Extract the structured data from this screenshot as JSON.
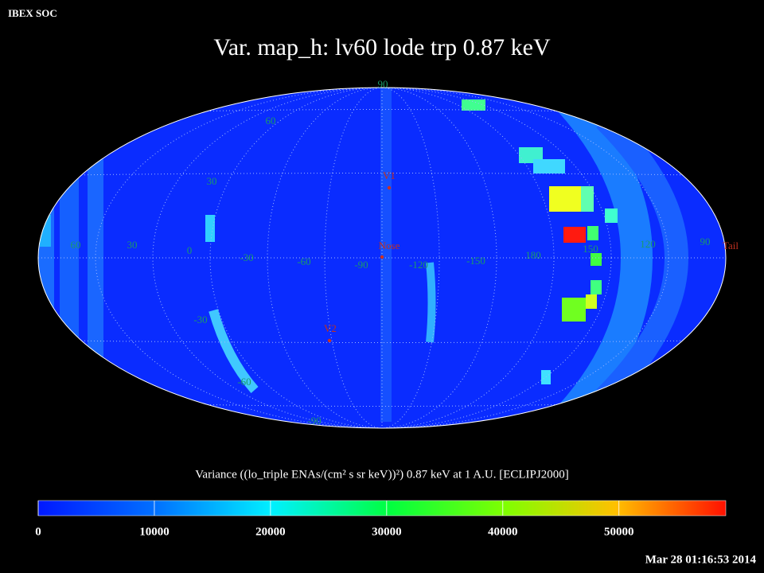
{
  "header": {
    "org": "IBEX SOC",
    "title": "Var. map_h: lv60 lode trp 0.87 keV"
  },
  "map": {
    "longitude_labels": [
      "60",
      "30",
      "0",
      "-30",
      "-60",
      "-90",
      "-120",
      "-150",
      "180",
      "150",
      "120",
      "90"
    ],
    "latitude_labels": [
      "90",
      "60",
      "30",
      "-30",
      "-60",
      "-90"
    ],
    "markers": [
      "V1",
      "Nose",
      "V2",
      "Tail"
    ]
  },
  "colorbar": {
    "caption": "Variance ((lo_triple ENAs/(cm² s sr keV))²) 0.87 keV at 1 A.U. [ECLIPJ2000]",
    "lim": [
      0,
      59200
    ],
    "ticks": [
      0,
      10000,
      20000,
      30000,
      40000,
      50000
    ]
  },
  "footer": {
    "timestamp": "Mar 28 01:16:53 2014"
  }
}
